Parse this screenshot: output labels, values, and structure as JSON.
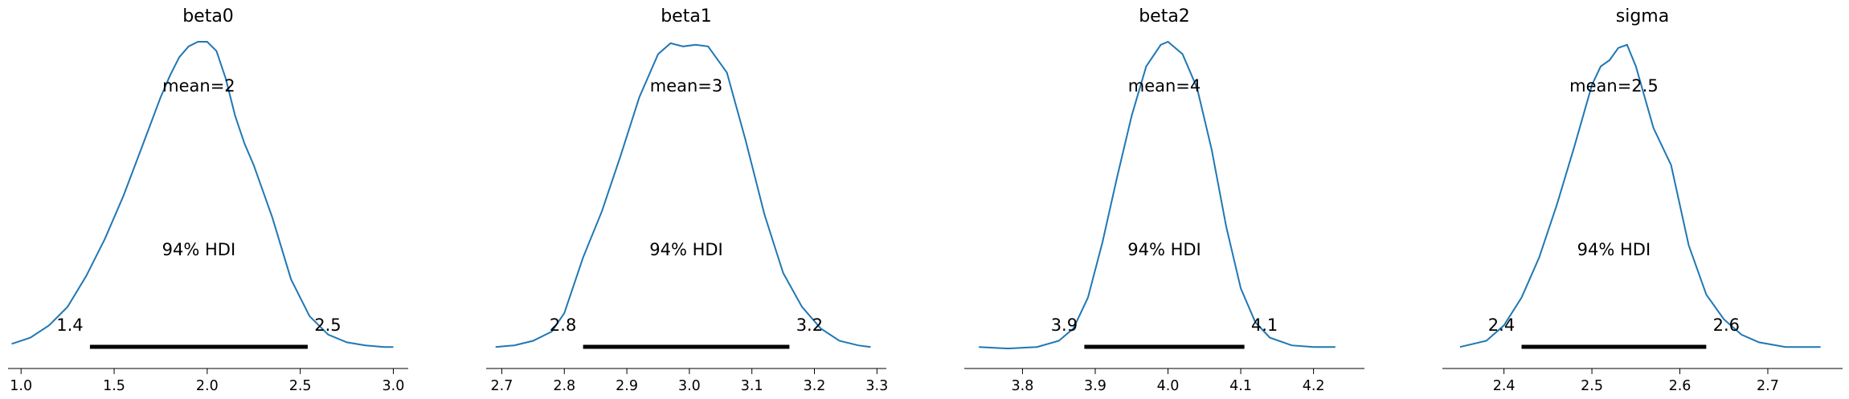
{
  "chart_data": [
    {
      "type": "line",
      "title": "beta0",
      "mean_label": "mean=2",
      "hdi_label": "94% HDI",
      "hdi": [
        1.37,
        2.54
      ],
      "hdi_tick_labels": [
        "1.4",
        "2.5"
      ],
      "xlim": [
        0.93,
        3.08
      ],
      "ticks": [
        1.0,
        1.5,
        2.0,
        2.5,
        3.0
      ],
      "tick_labels": [
        "1.0",
        "1.5",
        "2.0",
        "2.5",
        "3.0"
      ],
      "x": [
        0.95,
        1.05,
        1.15,
        1.25,
        1.35,
        1.45,
        1.55,
        1.65,
        1.75,
        1.8,
        1.85,
        1.9,
        1.95,
        2.0,
        2.05,
        2.1,
        2.15,
        2.2,
        2.25,
        2.35,
        2.45,
        2.55,
        2.65,
        2.75,
        2.85,
        2.95,
        3.0
      ],
      "y": [
        0.02,
        0.04,
        0.08,
        0.14,
        0.24,
        0.36,
        0.5,
        0.66,
        0.82,
        0.89,
        0.95,
        0.985,
        1.0,
        1.0,
        0.97,
        0.88,
        0.76,
        0.67,
        0.6,
        0.43,
        0.23,
        0.11,
        0.05,
        0.025,
        0.015,
        0.01,
        0.01
      ]
    },
    {
      "type": "line",
      "title": "beta1",
      "mean_label": "mean=3",
      "hdi_label": "94% HDI",
      "hdi": [
        2.83,
        3.16
      ],
      "hdi_tick_labels": [
        "2.8",
        "3.2"
      ],
      "xlim": [
        2.675,
        3.315
      ],
      "ticks": [
        2.7,
        2.8,
        2.9,
        3.0,
        3.1,
        3.2,
        3.3
      ],
      "tick_labels": [
        "2.7",
        "2.8",
        "2.9",
        "3.0",
        "3.1",
        "3.2",
        "3.3"
      ],
      "x": [
        2.69,
        2.72,
        2.75,
        2.78,
        2.8,
        2.83,
        2.86,
        2.89,
        2.92,
        2.95,
        2.97,
        2.99,
        3.01,
        3.03,
        3.06,
        3.09,
        3.12,
        3.15,
        3.18,
        3.21,
        3.24,
        3.27,
        3.29
      ],
      "y": [
        0.01,
        0.015,
        0.03,
        0.06,
        0.12,
        0.3,
        0.45,
        0.63,
        0.82,
        0.96,
        0.995,
        0.985,
        0.99,
        0.985,
        0.9,
        0.68,
        0.44,
        0.25,
        0.14,
        0.07,
        0.03,
        0.015,
        0.01
      ]
    },
    {
      "type": "line",
      "title": "beta2",
      "mean_label": "mean=4",
      "hdi_label": "94% HDI",
      "hdi": [
        3.885,
        4.105
      ],
      "hdi_tick_labels": [
        "3.9",
        "4.1"
      ],
      "xlim": [
        3.72,
        4.27
      ],
      "ticks": [
        3.8,
        3.9,
        4.0,
        4.1,
        4.2
      ],
      "tick_labels": [
        "3.8",
        "3.9",
        "4.0",
        "4.1",
        "4.2"
      ],
      "x": [
        3.74,
        3.78,
        3.82,
        3.85,
        3.87,
        3.89,
        3.91,
        3.93,
        3.95,
        3.97,
        3.99,
        4.0,
        4.02,
        4.04,
        4.06,
        4.08,
        4.1,
        4.12,
        4.14,
        4.17,
        4.2,
        4.23
      ],
      "y": [
        0.01,
        0.005,
        0.01,
        0.03,
        0.07,
        0.17,
        0.35,
        0.56,
        0.76,
        0.92,
        0.99,
        1.0,
        0.96,
        0.85,
        0.65,
        0.4,
        0.2,
        0.09,
        0.04,
        0.015,
        0.01,
        0.01
      ]
    },
    {
      "type": "line",
      "title": "sigma",
      "mean_label": "mean=2.5",
      "hdi_label": "94% HDI",
      "hdi": [
        2.42,
        2.63
      ],
      "hdi_tick_labels": [
        "2.4",
        "2.6"
      ],
      "xlim": [
        2.33,
        2.785
      ],
      "ticks": [
        2.4,
        2.5,
        2.6,
        2.7
      ],
      "tick_labels": [
        "2.4",
        "2.5",
        "2.6",
        "2.7"
      ],
      "x": [
        2.35,
        2.38,
        2.4,
        2.42,
        2.44,
        2.46,
        2.48,
        2.5,
        2.51,
        2.52,
        2.53,
        2.54,
        2.55,
        2.57,
        2.59,
        2.61,
        2.63,
        2.65,
        2.67,
        2.69,
        2.72,
        2.76
      ],
      "y": [
        0.01,
        0.03,
        0.08,
        0.17,
        0.3,
        0.47,
        0.66,
        0.86,
        0.92,
        0.94,
        0.98,
        0.99,
        0.92,
        0.72,
        0.6,
        0.34,
        0.18,
        0.1,
        0.05,
        0.025,
        0.01,
        0.01
      ]
    }
  ]
}
